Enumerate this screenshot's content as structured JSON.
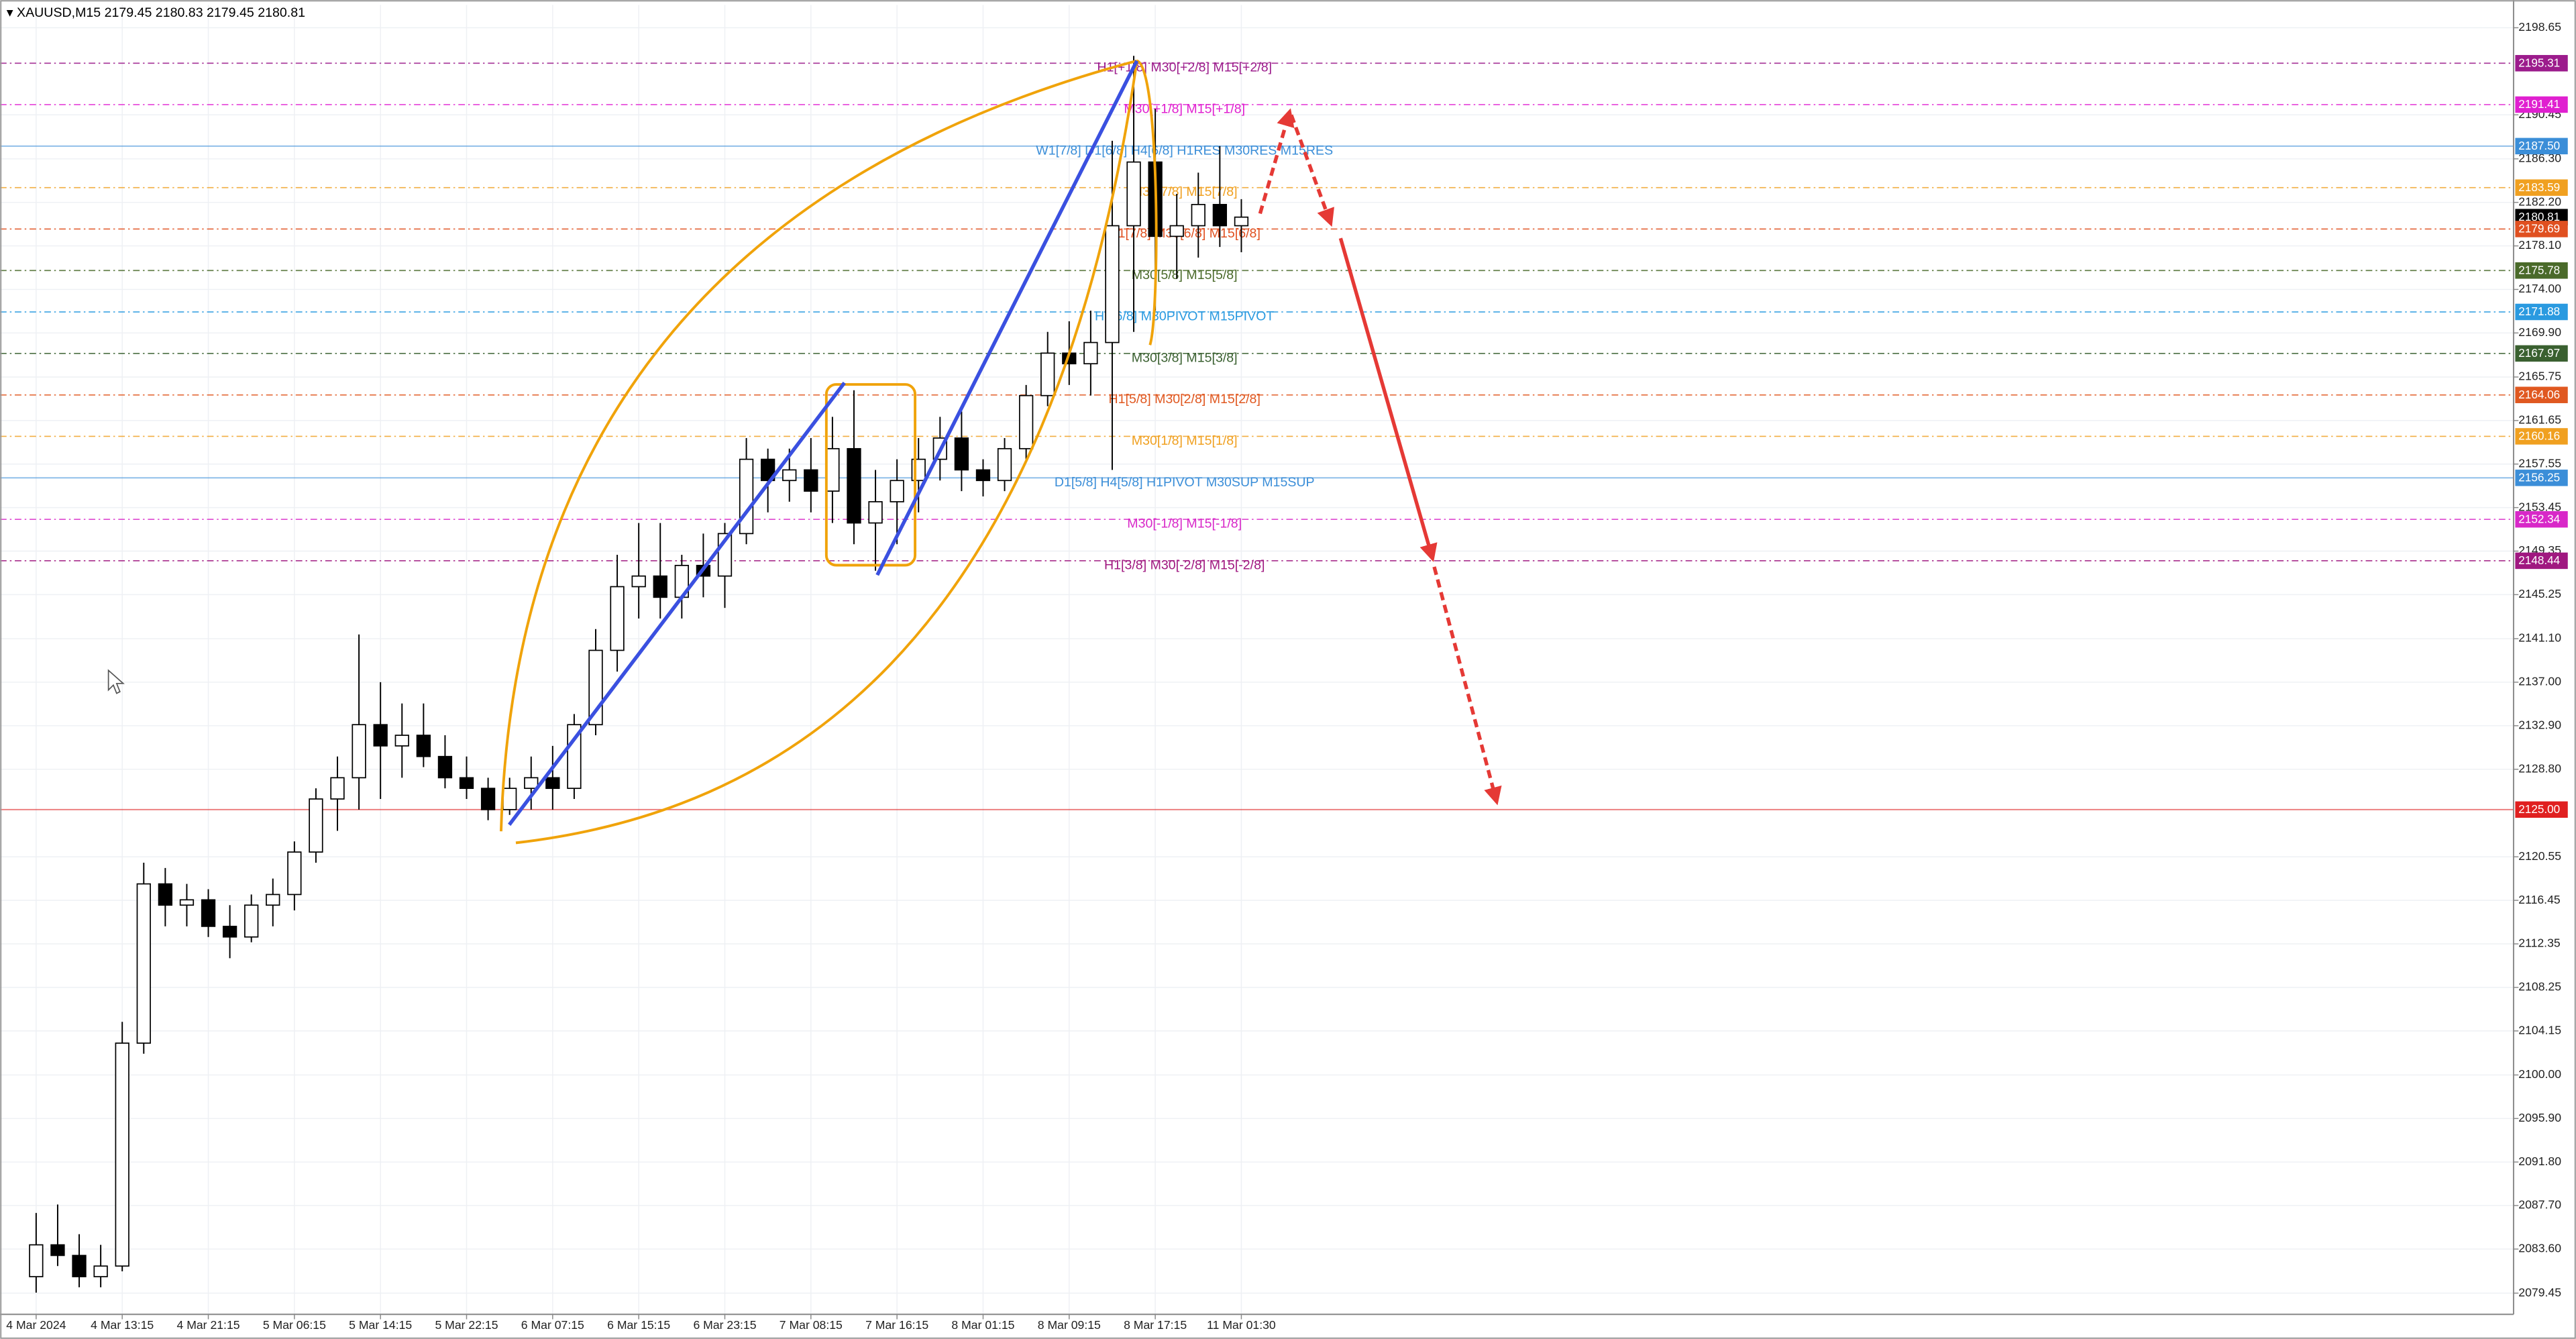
{
  "chart_data": {
    "type": "candlestick",
    "title": "▾ XAUUSD,M15  2179.45 2180.83 2179.45 2180.81",
    "categories": [
      "4 Mar 2024",
      null,
      null,
      null,
      "4 Mar 13:15",
      null,
      null,
      null,
      "4 Mar 21:15",
      null,
      null,
      null,
      "5 Mar 06:15",
      null,
      null,
      null,
      "5 Mar 14:15",
      null,
      null,
      null,
      "5 Mar 22:15",
      null,
      null,
      null,
      "6 Mar 07:15",
      null,
      null,
      null,
      "6 Mar 15:15",
      null,
      null,
      null,
      "6 Mar 23:15",
      null,
      null,
      null,
      "7 Mar 08:15",
      null,
      null,
      null,
      "7 Mar 16:15",
      null,
      null,
      null,
      "8 Mar 01:15",
      null,
      null,
      null,
      "8 Mar 09:15",
      null,
      null,
      null,
      "8 Mar 17:15",
      null,
      null,
      null,
      "11 Mar 01:30"
    ],
    "open": [
      2081,
      2084,
      2083,
      2081,
      2082,
      2103,
      2118,
      2116,
      2116.5,
      2114,
      2113,
      2116,
      2117,
      2121,
      2126,
      2128,
      2133,
      2131,
      2132,
      2130,
      2128,
      2127,
      2125,
      2127,
      2128,
      2127,
      2133,
      2140,
      2146,
      2147,
      2145,
      2148,
      2147,
      2151,
      2158,
      2156,
      2157,
      2155,
      2159,
      2152,
      2154,
      2156,
      2158,
      2160,
      2157,
      2156,
      2159,
      2164,
      2168,
      2167,
      2169,
      2180,
      2186,
      2179,
      2180,
      2182,
      2180
    ],
    "high": [
      2087,
      2087.8,
      2085,
      2084,
      2105,
      2120,
      2119.5,
      2118,
      2117.5,
      2116,
      2117,
      2118.5,
      2122,
      2127,
      2130,
      2141.5,
      2137,
      2135,
      2135,
      2132,
      2130,
      2128,
      2128,
      2130,
      2131,
      2134,
      2142,
      2149,
      2152,
      2152,
      2149,
      2151,
      2152,
      2160,
      2159,
      2159,
      2160,
      2162,
      2164.5,
      2157,
      2158,
      2160,
      2162,
      2162.5,
      2158,
      2160,
      2165,
      2170,
      2171,
      2172,
      2188,
      2196,
      2191,
      2183,
      2185,
      2187.5,
      2182.5
    ],
    "low": [
      2079.5,
      2082,
      2080,
      2080,
      2081.5,
      2102,
      2114,
      2114,
      2113,
      2111,
      2112.5,
      2114,
      2115.5,
      2120,
      2123,
      2125,
      2126,
      2128,
      2129,
      2127,
      2126,
      2124,
      2124.5,
      2125,
      2125,
      2126,
      2132,
      2138,
      2143,
      2143,
      2143,
      2145,
      2144,
      2150,
      2153,
      2154,
      2153,
      2152,
      2150,
      2147.5,
      2150,
      2153,
      2156,
      2155,
      2154.5,
      2155,
      2158,
      2163,
      2165,
      2164,
      2157,
      2170,
      2172,
      2175,
      2177,
      2178,
      2177.5
    ],
    "close": [
      2084,
      2083,
      2081,
      2082,
      2103,
      2118,
      2116,
      2116.5,
      2114,
      2113,
      2116,
      2117,
      2121,
      2126,
      2128,
      2133,
      2131,
      2132,
      2130,
      2128,
      2127,
      2125,
      2127,
      2128,
      2127,
      2133,
      2140,
      2146,
      2147,
      2145,
      2148,
      2147,
      2151,
      2158,
      2156,
      2157,
      2155,
      2159,
      2152,
      2154,
      2156,
      2158,
      2160,
      2157,
      2156,
      2159,
      2164,
      2168,
      2167,
      2169,
      2180,
      2186,
      2179,
      2180,
      2182,
      2180,
      2180.81
    ],
    "up_color": "#ffffff",
    "down_color": "#000000",
    "ylim": [
      2077.45,
      2200.8
    ],
    "yticks": [
      2198.65,
      2190.45,
      {
        "value": 2186.3,
        "label": "2186.30"
      },
      {
        "value": 2182.2,
        "label": "2182.20"
      },
      {
        "value": 2178.1,
        "label": "2178.10"
      },
      {
        "value": 2174,
        "label": "2174.00"
      },
      {
        "value": 2169.9,
        "label": "2169.90"
      },
      2165.75,
      2161.65,
      2157.55,
      2153.45,
      2149.35,
      2145.25,
      {
        "value": 2141.1,
        "label": "2141.10"
      },
      {
        "value": 2137,
        "label": "2137.00"
      },
      {
        "value": 2132.9,
        "label": "2132.90"
      },
      {
        "value": 2128.8,
        "label": "2128.80"
      },
      2120.55,
      2116.45,
      2112.35,
      2108.25,
      2104.15,
      {
        "value": 2100,
        "label": "2100.00"
      },
      {
        "value": 2095.9,
        "label": "2095.90"
      },
      {
        "value": 2091.8,
        "label": "2091.80"
      },
      {
        "value": 2087.7,
        "label": "2087.70"
      },
      {
        "value": 2083.6,
        "label": "2083.60"
      },
      2079.45
    ],
    "grid": true,
    "levels": [
      {
        "value": 2195.31,
        "color": "#9c1c8c",
        "style": "dash",
        "text": "H1[+1/8] M30[+2/8] M15[+2/8]"
      },
      {
        "value": 2191.41,
        "color": "#e020d0",
        "style": "dash",
        "text": "M30[+1/8] M15[+1/8]"
      },
      {
        "value": 2187.5,
        "label": "2187.50",
        "color": "#3b8ed8",
        "style": "solid",
        "text": "W1[7/8] D1[6/8] H4[6/8] H1RES M30RES M15RES"
      },
      {
        "value": 2183.59,
        "color": "#f0a020",
        "style": "dash",
        "text": "M30[7/8] M15[7/8]"
      },
      {
        "value": 2180.81,
        "color": "#000000",
        "style": "none"
      },
      {
        "value": 2179.69,
        "color": "#e05020",
        "style": "dash",
        "text": "H1[7/8] M30[6/8] M15[6/8]"
      },
      {
        "value": 2175.78,
        "color": "#4a6a2a",
        "style": "dash",
        "text": "M30[5/8] M15[5/8]"
      },
      {
        "value": 2171.88,
        "color": "#2a9ae0",
        "style": "dash",
        "text": "H1[6/8] M30PIVOT M15PIVOT"
      },
      {
        "value": 2167.97,
        "color": "#3a6030",
        "style": "dash",
        "text": "M30[3/8] M15[3/8]"
      },
      {
        "value": 2164.06,
        "color": "#e05820",
        "style": "dash",
        "text": "H1[5/8] M30[2/8] M15[2/8]"
      },
      {
        "value": 2160.16,
        "color": "#f0a020",
        "style": "dash",
        "text": "M30[1/8] M15[1/8]"
      },
      {
        "value": 2156.25,
        "color": "#3b8ed8",
        "style": "solid",
        "text": "D1[5/8] H4[5/8] H1PIVOT M30SUP M15SUP"
      },
      {
        "value": 2152.34,
        "color": "#d828c8",
        "style": "dash",
        "text": "M30[-1/8] M15[-1/8]"
      },
      {
        "value": 2148.44,
        "color": "#a01880",
        "style": "dash",
        "text": "H1[3/8] M30[-2/8] M15[-2/8]"
      },
      {
        "value": 2125,
        "label": "2125.00",
        "color": "#e02020",
        "style": "solid"
      }
    ]
  }
}
